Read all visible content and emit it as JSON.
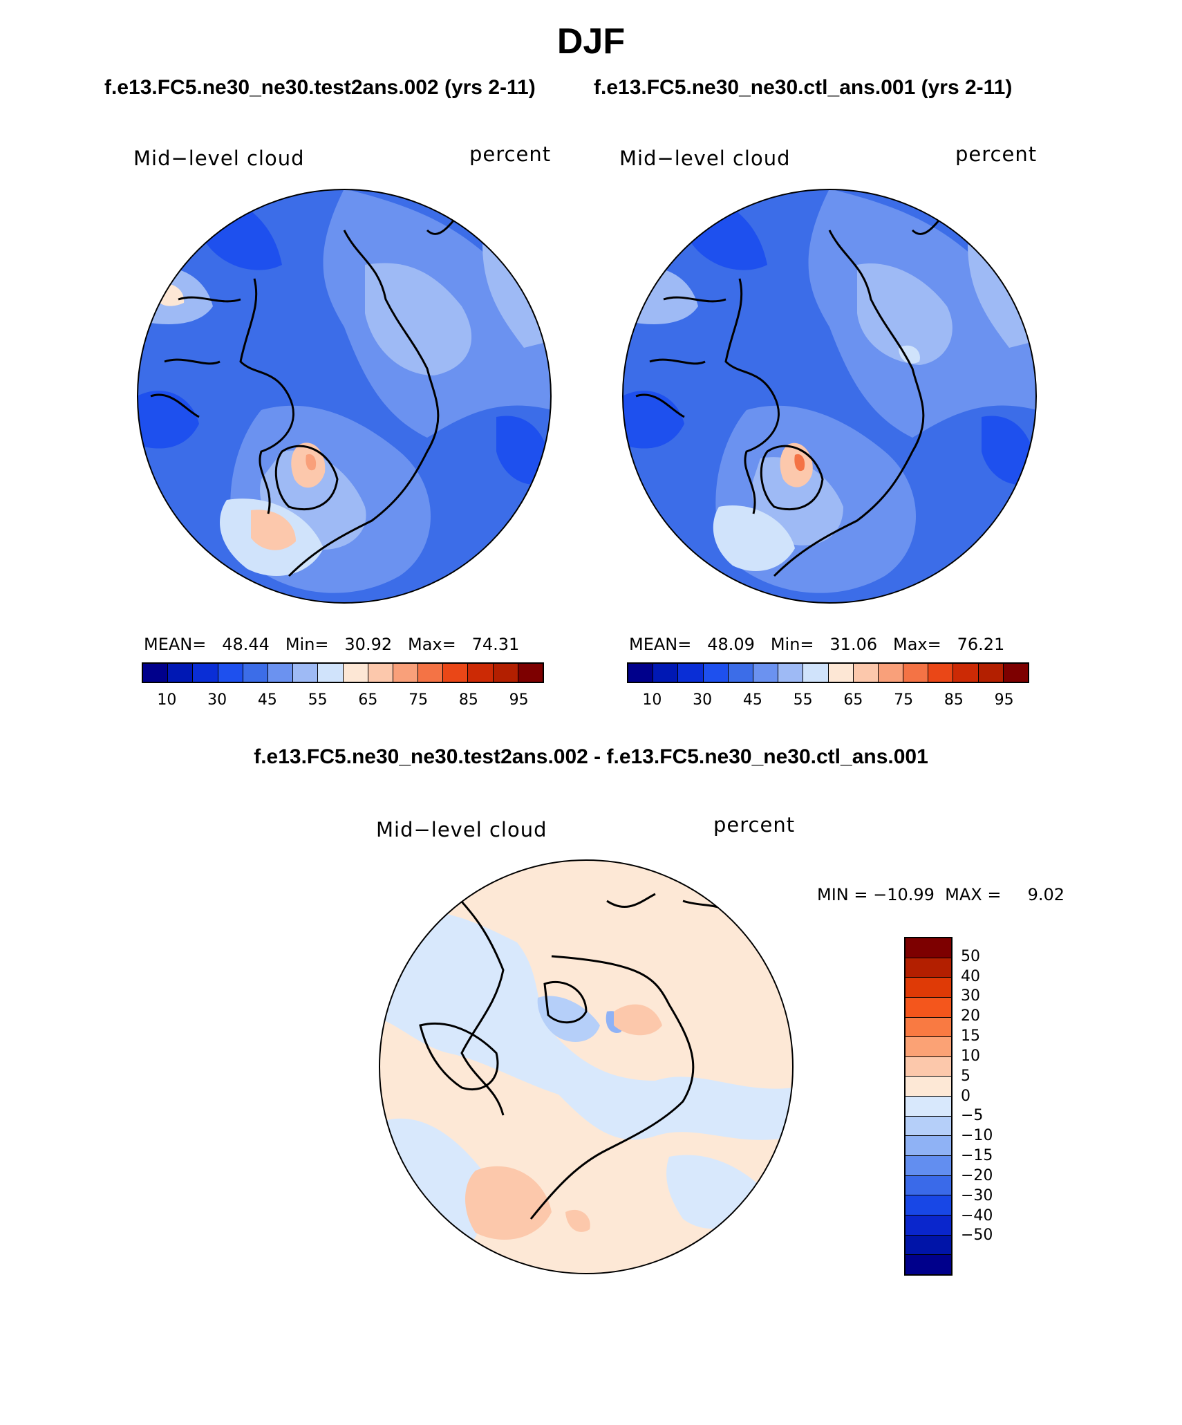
{
  "figure": {
    "title": "DJF",
    "case_left": "f.e13.FC5.ne30_ne30.test2ans.002 (yrs 2-11)",
    "case_right": "f.e13.FC5.ne30_ne30.ctl_ans.001 (yrs 2-11)",
    "diff_title": "f.e13.FC5.ne30_ne30.test2ans.002 - f.e13.FC5.ne30_ne30.ctl_ans.001"
  },
  "panels": {
    "left": {
      "field": "Mid−level cloud",
      "units": "percent",
      "stats": "MEAN=   48.44   Min=   30.92   Max=   74.31",
      "mean": 48.44,
      "min": 30.92,
      "max": 74.31
    },
    "right": {
      "field": "Mid−level cloud",
      "units": "percent",
      "stats": "MEAN=   48.09   Min=   31.06   Max=   76.21",
      "mean": 48.09,
      "min": 31.06,
      "max": 76.21
    },
    "diff": {
      "field": "Mid−level cloud",
      "units": "percent",
      "stats": "MIN = −10.99  MAX =     9.02",
      "min": -10.99,
      "max": 9.02
    }
  },
  "colorbar_abs": {
    "colors": [
      "#00008b",
      "#0018b4",
      "#0a2ed6",
      "#1e50ee",
      "#3c6de8",
      "#6b92f0",
      "#9ebaf5",
      "#d0e3fb",
      "#fde7d5",
      "#fcc8ac",
      "#f9a07a",
      "#f47345",
      "#ea4717",
      "#cc2a05",
      "#b31f00",
      "#7d0000"
    ],
    "labels": [
      "10",
      "30",
      "45",
      "55",
      "65",
      "75",
      "85",
      "95"
    ]
  },
  "colorbar_diff": {
    "colors": [
      "#7d0000",
      "#b31f00",
      "#df3a06",
      "#f4561c",
      "#f97a42",
      "#fba275",
      "#fcc8ab",
      "#fde8d6",
      "#d8e8fc",
      "#b5cff9",
      "#8fb2f5",
      "#628ef0",
      "#3a6ae9",
      "#1847e6",
      "#0a26cc",
      "#0014a8",
      "#00008b"
    ],
    "labels": [
      "50",
      "40",
      "30",
      "20",
      "15",
      "10",
      "5",
      "0",
      "−5",
      "−10",
      "−15",
      "−20",
      "−30",
      "−40",
      "−50"
    ]
  }
}
